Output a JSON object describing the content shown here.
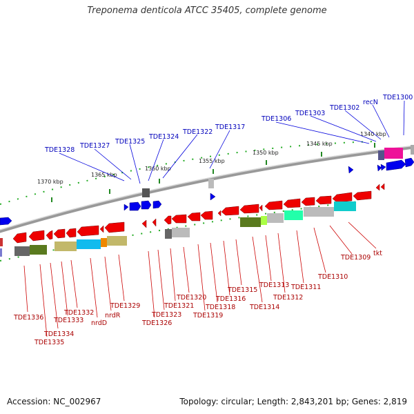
{
  "title": "Treponema denticola ATCC 35405, complete genome",
  "footer": {
    "accession": "Accession: NC_002967",
    "summary": "Topology: circular; Length: 2,843,201 bp; Genes: 2,819"
  },
  "colors": {
    "forward_gene": "#0000ee",
    "reverse_gene": "#ee0000",
    "forward_label": "#0000bb",
    "reverse_label": "#aa0000",
    "backbone": "#888888",
    "tick": "#22aa22"
  },
  "kbp_marks": [
    "1340 kbp",
    "1345 kbp",
    "1350 kbp",
    "1355 kbp",
    "1360 kbp",
    "1365 kbp",
    "1370 kbp"
  ],
  "forward_labels": [
    "TDE1300",
    "recN",
    "TDE1302",
    "TDE1303",
    "TDE1306",
    "TDE1317",
    "TDE1322",
    "TDE1324",
    "TDE1325",
    "TDE1327",
    "TDE1328"
  ],
  "reverse_labels": [
    "TDE1336",
    "TDE1335",
    "TDE1334",
    "TDE1333",
    "TDE1332",
    "nrdD",
    "nrdR",
    "TDE1329",
    "TDE1326",
    "TDE1323",
    "TDE1321",
    "TDE1320",
    "TDE1319",
    "TDE1318",
    "TDE1316",
    "TDE1315",
    "TDE1314",
    "TDE1313",
    "TDE1312",
    "TDE1311",
    "TDE1310",
    "TDE1309",
    "tkt"
  ]
}
